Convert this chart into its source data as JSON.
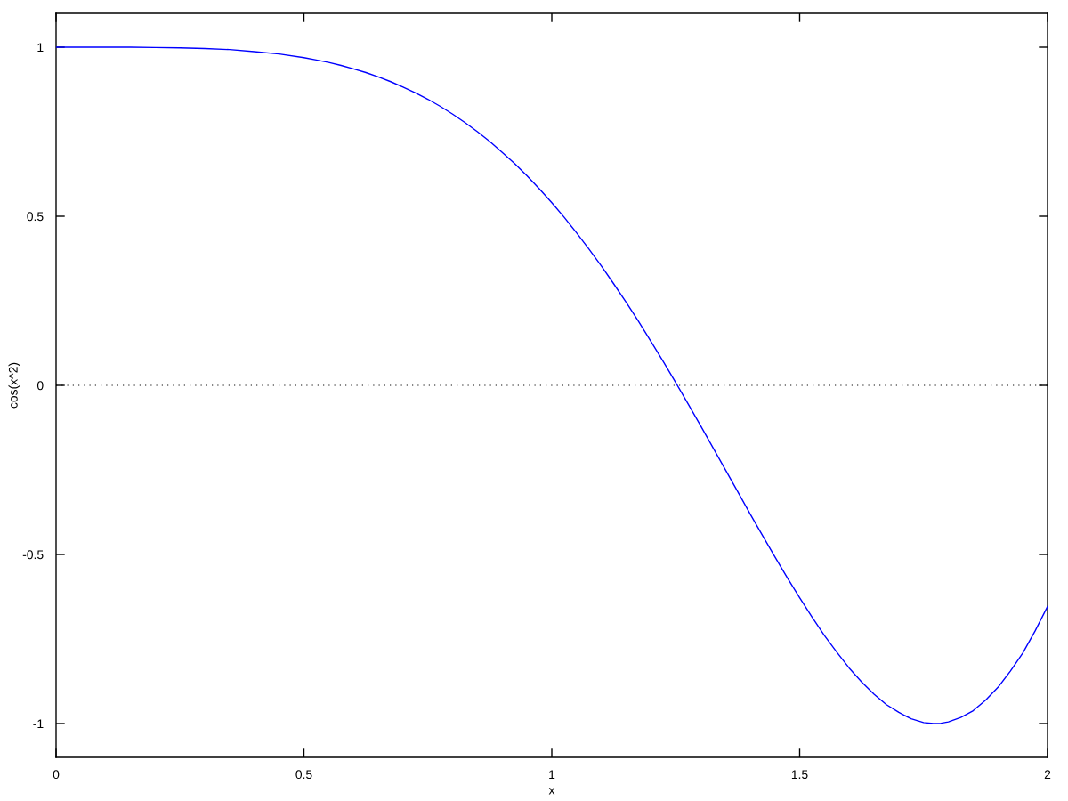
{
  "chart_data": {
    "type": "line",
    "xlabel": "x",
    "ylabel": "cos(x^2)",
    "x": [
      0,
      0.05,
      0.1,
      0.15,
      0.2,
      0.25,
      0.3,
      0.35,
      0.4,
      0.45,
      0.5,
      0.525,
      0.55,
      0.575,
      0.6,
      0.625,
      0.65,
      0.675,
      0.7,
      0.725,
      0.75,
      0.775,
      0.8,
      0.825,
      0.85,
      0.875,
      0.9,
      0.925,
      0.95,
      0.975,
      1.0,
      1.025,
      1.05,
      1.075,
      1.1,
      1.125,
      1.15,
      1.175,
      1.2,
      1.225,
      1.25,
      1.275,
      1.3,
      1.325,
      1.35,
      1.375,
      1.4,
      1.425,
      1.45,
      1.475,
      1.5,
      1.525,
      1.55,
      1.575,
      1.6,
      1.625,
      1.65,
      1.675,
      1.7,
      1.725,
      1.75,
      1.77,
      1.785,
      1.8,
      1.825,
      1.85,
      1.875,
      1.9,
      1.925,
      1.95,
      1.975,
      2.0
    ],
    "series": [
      {
        "color": "#0000ff",
        "values": [
          1.0,
          1.0,
          1.0,
          1.0,
          0.999,
          0.998,
          0.996,
          0.993,
          0.987,
          0.98,
          0.969,
          0.962,
          0.955,
          0.946,
          0.936,
          0.925,
          0.912,
          0.898,
          0.882,
          0.865,
          0.846,
          0.825,
          0.802,
          0.777,
          0.75,
          0.721,
          0.689,
          0.656,
          0.62,
          0.581,
          0.54,
          0.497,
          0.451,
          0.403,
          0.353,
          0.3,
          0.246,
          0.189,
          0.13,
          0.07,
          0.008,
          -0.055,
          -0.119,
          -0.184,
          -0.249,
          -0.314,
          -0.38,
          -0.444,
          -0.507,
          -0.569,
          -0.628,
          -0.685,
          -0.74,
          -0.789,
          -0.836,
          -0.877,
          -0.913,
          -0.944,
          -0.967,
          -0.986,
          -0.997,
          -1.0,
          -0.999,
          -0.995,
          -0.982,
          -0.962,
          -0.931,
          -0.893,
          -0.845,
          -0.792,
          -0.726,
          -0.654
        ]
      }
    ],
    "xlim": [
      0,
      2
    ],
    "xticks": [
      0,
      0.5,
      1,
      1.5,
      2
    ],
    "ylim": [
      -1.1,
      1.1
    ],
    "yticks": [
      -1,
      -0.5,
      0,
      0.5,
      1
    ],
    "ref_lines": [
      {
        "axis": "y",
        "value": 0,
        "color": "#606060",
        "line_style": "dotted"
      }
    ],
    "grid": false
  }
}
